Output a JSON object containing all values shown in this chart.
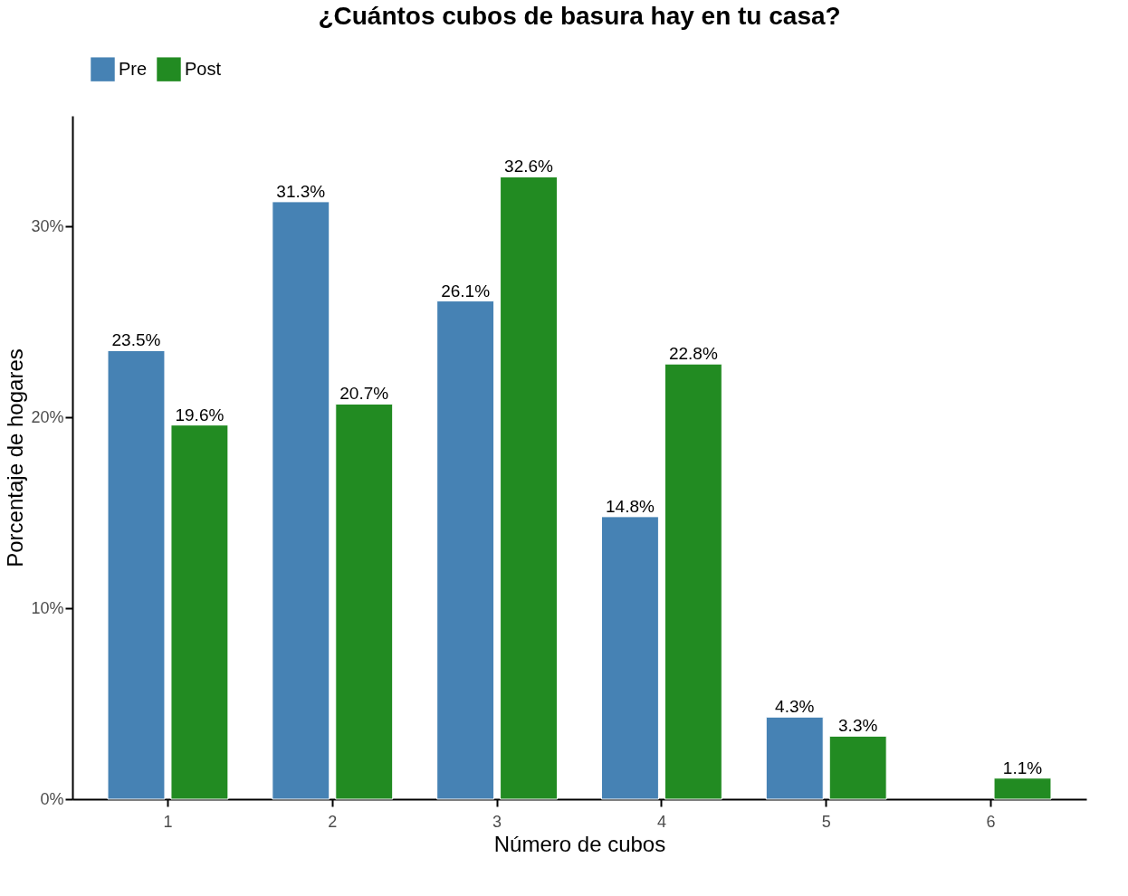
{
  "chart_data": {
    "type": "bar",
    "title": "¿Cuántos cubos de basura hay en tu casa?",
    "xlabel": "Número de cubos",
    "ylabel": "Porcentaje de hogares",
    "categories": [
      "1",
      "2",
      "3",
      "4",
      "5",
      "6"
    ],
    "series": [
      {
        "name": "Pre",
        "color": "#4682b4",
        "values": [
          23.5,
          31.3,
          26.1,
          14.8,
          4.3,
          null
        ],
        "value_labels": [
          "23.5%",
          "31.3%",
          "26.1%",
          "14.8%",
          "4.3%",
          null
        ]
      },
      {
        "name": "Post",
        "color": "#228b22",
        "values": [
          19.6,
          20.7,
          32.6,
          22.8,
          3.3,
          1.1
        ],
        "value_labels": [
          "19.6%",
          "20.7%",
          "32.6%",
          "22.8%",
          "3.3%",
          "1.1%"
        ]
      }
    ],
    "ylim": [
      0,
      35.8
    ],
    "yticks": [
      {
        "value": 0,
        "label": "0%"
      },
      {
        "value": 10,
        "label": "10%"
      },
      {
        "value": 20,
        "label": "20%"
      },
      {
        "value": 30,
        "label": "30%"
      }
    ],
    "grid": false,
    "legend": "top"
  }
}
